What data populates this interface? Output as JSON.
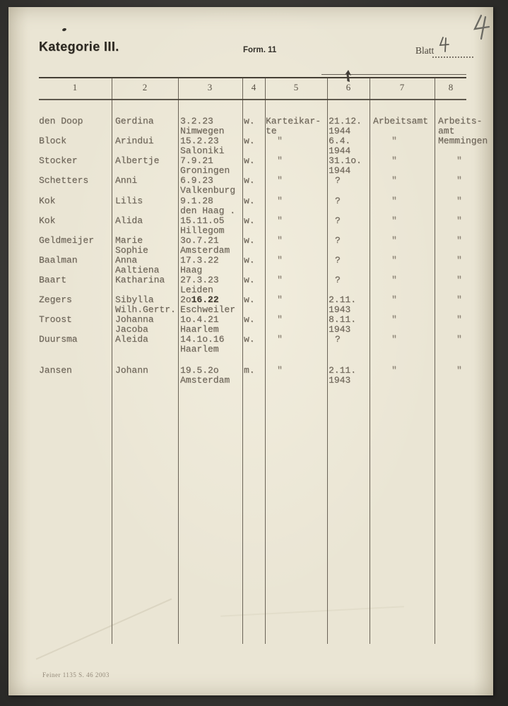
{
  "page": {
    "category_title": "Kategorie III.",
    "form_label": "Form. 11",
    "sheet_label": "Blatt",
    "sheet_number": "4",
    "corner_number": "4",
    "printer_mark": "Feiner 1135 S. 46 2003",
    "colors": {
      "paper": "#eae5d4",
      "scan_background": "#3a3936",
      "typewriter_ink": "#6e665a",
      "print_ink": "#2c2821"
    },
    "icons": {
      "corner_mark": "handwritten-four",
      "sheet_mark": "handwritten-four",
      "arrow_mark": "ink-arrow",
      "dot_mark": "ink-dot"
    }
  },
  "table": {
    "column_numbers": [
      "1",
      "2",
      "3",
      "4",
      "5",
      "6",
      "7",
      "8"
    ],
    "rows": [
      {
        "surname": "den Doop",
        "firstname": [
          "Gerdina"
        ],
        "birth": [
          "3.2.23",
          "Nimwegen"
        ],
        "sex": "w.",
        "card": [
          "Karteikar-",
          "te"
        ],
        "date": [
          "21.12.",
          "1944"
        ],
        "office": "Arbeitsamt",
        "office2": [
          "Arbeits-",
          "amt"
        ]
      },
      {
        "surname": "Block",
        "firstname": [
          "Arindui"
        ],
        "birth": [
          "15.2.23",
          "Saloniki"
        ],
        "sex": "w.",
        "card": "\"",
        "date": [
          "6.4.",
          "1944"
        ],
        "office": "\"",
        "office2": [
          "Memmingen"
        ]
      },
      {
        "surname": "Stocker",
        "firstname": [
          "Albertje"
        ],
        "birth": [
          "7.9.21",
          "Groningen"
        ],
        "sex": "w.",
        "card": "\"",
        "date": [
          "31.1o.",
          "1944"
        ],
        "office": "\"",
        "office2": "\""
      },
      {
        "surname": "Schetters",
        "firstname": [
          "Anni"
        ],
        "birth": [
          "6.9.23",
          "Valkenburg"
        ],
        "sex": "w.",
        "card": "\"",
        "date": "?",
        "office": "\"",
        "office2": "\""
      },
      {
        "surname": "Kok",
        "firstname": [
          "Lilis"
        ],
        "birth": [
          "9.1.28",
          "den Haag ."
        ],
        "sex": "w.",
        "card": "\"",
        "date": "?",
        "office": "\"",
        "office2": "\""
      },
      {
        "surname": "Kok",
        "firstname": [
          "Alida"
        ],
        "birth": [
          "15.11.o5",
          "Hillegom"
        ],
        "sex": "w.",
        "card": "\"",
        "date": "?",
        "office": "\"",
        "office2": "\""
      },
      {
        "surname": "Geldmeijer",
        "firstname": [
          "Marie",
          "Sophie"
        ],
        "birth": [
          "3o.7.21",
          "Amsterdam"
        ],
        "sex": "w.",
        "card": "\"",
        "date": "?",
        "office": "\"",
        "office2": "\""
      },
      {
        "surname": "Baalman",
        "firstname": [
          "Anna",
          "Aaltiena"
        ],
        "birth": [
          "17.3.22",
          "Haag"
        ],
        "sex": "w.",
        "card": "\"",
        "date": "?",
        "office": "\"",
        "office2": "\""
      },
      {
        "surname": "Baart",
        "firstname": [
          "Katharina"
        ],
        "birth": [
          "27.3.23",
          "Leiden"
        ],
        "sex": "w.",
        "card": "\"",
        "date": "?",
        "office": "\"",
        "office2": "\""
      },
      {
        "surname": "Zegers",
        "firstname": [
          "Sibylla",
          "Wilh.Gertr."
        ],
        "birth": [
          [
            "2o",
            "16.22"
          ],
          "Eschweiler"
        ],
        "sex": "w.",
        "card": "\"",
        "date": [
          "2.11.",
          "1943"
        ],
        "office": "\"",
        "office2": "\""
      },
      {
        "surname": "Troost",
        "firstname": [
          "Johanna",
          "Jacoba"
        ],
        "birth": [
          "1o.4.21",
          "Haarlem"
        ],
        "sex": "w.",
        "card": "\"",
        "date": [
          "8.11.",
          "1943"
        ],
        "office": "\"",
        "office2": "\""
      },
      {
        "surname": "Duursma",
        "firstname": [
          "Aleida"
        ],
        "birth": [
          "14.1o.16",
          "Haarlem"
        ],
        "sex": "w.",
        "card": "\"",
        "date": "?",
        "office": "\"",
        "office2": "\""
      },
      {
        "surname": "Jansen",
        "firstname": [
          "Johann"
        ],
        "birth": [
          "19.5.2o",
          "Amsterdam"
        ],
        "sex": "m.",
        "card": "\"",
        "date": [
          "2.11.",
          "1943"
        ],
        "office": "\"",
        "office2": "\""
      }
    ]
  }
}
